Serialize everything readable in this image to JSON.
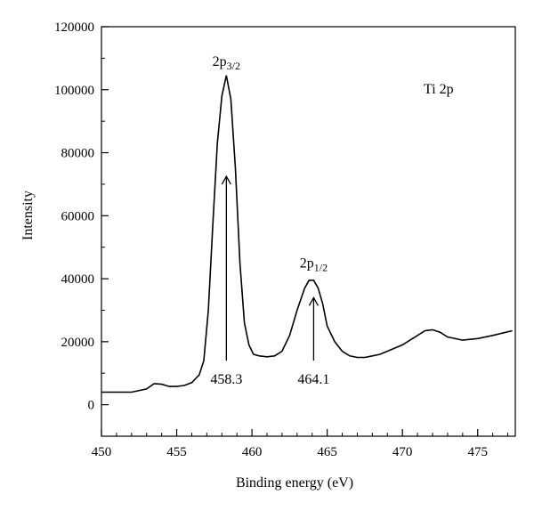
{
  "chart_data": {
    "type": "line",
    "xlabel": "Binding energy (eV)",
    "ylabel": "Intensity",
    "xlim": [
      450,
      477.5
    ],
    "ylim": [
      -10000,
      120000
    ],
    "x_ticks": [
      450,
      455,
      460,
      465,
      470,
      475
    ],
    "y_ticks": [
      0,
      20000,
      40000,
      60000,
      80000,
      100000,
      120000
    ],
    "x_tick_labels": [
      "450",
      "455",
      "460",
      "465",
      "470",
      "475"
    ],
    "y_tick_labels": [
      "0",
      "20000",
      "40000",
      "60000",
      "80000",
      "100000",
      "120000"
    ],
    "grid": false,
    "legend": "none",
    "series_label": "Ti 2p",
    "annotations": [
      {
        "label": "2p",
        "sub": "3/2",
        "x": 458.3,
        "y_label": 107500,
        "arrow_from": 14000,
        "arrow_to": 72500,
        "value_label": "458.3"
      },
      {
        "label": "2p",
        "sub": "1/2",
        "x": 464.1,
        "y_label": 43500,
        "arrow_from": 14000,
        "arrow_to": 34000,
        "value_label": "464.1"
      }
    ],
    "series": [
      {
        "x": [
          450,
          451,
          452,
          453,
          453.5,
          454,
          454.5,
          455,
          455.5,
          456,
          456.5,
          456.8,
          457.1,
          457.4,
          457.7,
          458.0,
          458.3,
          458.6,
          458.9,
          459.2,
          459.5,
          459.8,
          460.1,
          460.5,
          461,
          461.5,
          462,
          462.5,
          463,
          463.5,
          463.8,
          464.1,
          464.4,
          464.7,
          465,
          465.5,
          466,
          466.5,
          467,
          467.5,
          468,
          468.5,
          469,
          470,
          471,
          471.5,
          472,
          472.5,
          473,
          474,
          475,
          476,
          477.3
        ],
        "y": [
          4000,
          4000,
          4000,
          5000,
          6700,
          6500,
          5800,
          5800,
          6100,
          7000,
          9500,
          14000,
          30000,
          57000,
          83000,
          98000,
          104500,
          97000,
          75000,
          45000,
          26000,
          19000,
          16000,
          15500,
          15200,
          15500,
          17000,
          22000,
          30000,
          37000,
          39500,
          39500,
          37000,
          32000,
          25000,
          20000,
          17000,
          15500,
          15000,
          15000,
          15500,
          16000,
          17000,
          19000,
          22000,
          23500,
          23800,
          23000,
          21500,
          20500,
          21000,
          22000,
          23500
        ]
      }
    ]
  }
}
